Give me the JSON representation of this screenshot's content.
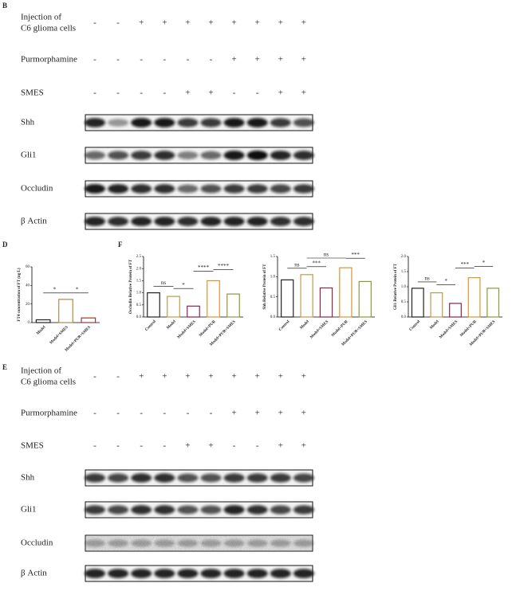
{
  "letters": [
    "B",
    "D",
    "F",
    "E"
  ],
  "blot_panels": [
    {
      "treatments": [
        {
          "label": [
            "Injection of",
            "C6 glioma cells"
          ],
          "signs": [
            "-",
            "-",
            "+",
            "+",
            "+",
            "+",
            "+",
            "+",
            "+",
            "+"
          ]
        },
        {
          "label": [
            "Purmorphamine"
          ],
          "signs": [
            "-",
            "-",
            "-",
            "-",
            "-",
            "-",
            "+",
            "+",
            "+",
            "+"
          ]
        },
        {
          "label": [
            "SMES"
          ],
          "signs": [
            "-",
            "-",
            "-",
            "-",
            "+",
            "+",
            "-",
            "-",
            "+",
            "+"
          ]
        }
      ],
      "bands": [
        "Shh",
        "Gli1",
        "Occludin",
        "β Actin"
      ]
    },
    {
      "treatments": [
        {
          "label": [
            "Injection of",
            "C6 glioma cells"
          ],
          "signs": [
            "-",
            "-",
            "+",
            "+",
            "+",
            "+",
            "+",
            "+",
            "+",
            "+"
          ]
        },
        {
          "label": [
            "Purmorphamine"
          ],
          "signs": [
            "-",
            "-",
            "-",
            "-",
            "-",
            "-",
            "+",
            "+",
            "+",
            "+"
          ]
        },
        {
          "label": [
            "SMES"
          ],
          "signs": [
            "-",
            "-",
            "-",
            "-",
            "+",
            "+",
            "-",
            "-",
            "+",
            "+"
          ]
        }
      ],
      "bands": [
        "Shh",
        "Gli1",
        "Occludin",
        "β Actin"
      ]
    }
  ],
  "chart_data": [
    {
      "type": "bar",
      "ylabel": "FT4 concentration of FT (ng/L)",
      "categories": [
        "Model",
        "Model+SMES",
        "Model+PUR+SMES"
      ],
      "values": [
        3,
        25,
        5
      ],
      "colors": [
        "#222222",
        "#b08a4a",
        "#9c3a3a"
      ],
      "ylim": [
        0,
        60
      ],
      "yticks": [
        0,
        20,
        40,
        60
      ],
      "annotations": [
        "*",
        "*"
      ]
    },
    {
      "type": "bar",
      "ylabel": "Occludin Relative Protein of FT",
      "categories": [
        "Control",
        "Model",
        "Model+SMES",
        "Model+PUR",
        "Model+PUR+SMES"
      ],
      "values": [
        1.0,
        0.85,
        0.45,
        1.5,
        0.95
      ],
      "colors": [
        "#222222",
        "#c49a4a",
        "#8b2252",
        "#d9962a",
        "#8a9a3a"
      ],
      "ylim": [
        0,
        2.5
      ],
      "yticks": [
        {
          "value": 0,
          "label": "0.0"
        },
        {
          "value": 0.5,
          "label": "0.5"
        },
        {
          "value": 1,
          "label": "1.0"
        },
        {
          "value": 1.5,
          "label": "1.5"
        },
        {
          "value": 2,
          "label": "2.0"
        },
        {
          "value": 2.5,
          "label": "2.5"
        }
      ],
      "annotations": [
        "ns",
        "*",
        "****",
        "****"
      ]
    },
    {
      "type": "bar",
      "ylabel": "Shh Relative Protein of FT",
      "categories": [
        "Control",
        "Model",
        "Model+SMES",
        "Model+PUR",
        "Model+PUR+SMES"
      ],
      "values": [
        0.92,
        1.05,
        0.72,
        1.22,
        0.88
      ],
      "colors": [
        "#222222",
        "#c49a4a",
        "#8b2252",
        "#d9962a",
        "#8a9a3a"
      ],
      "ylim": [
        0,
        1.5
      ],
      "yticks": [
        {
          "value": 0,
          "label": "0.0"
        },
        {
          "value": 0.5,
          "label": "0.5"
        },
        {
          "value": 1,
          "label": "1.0"
        },
        {
          "value": 1.5,
          "label": "1.5"
        }
      ],
      "annotations": [
        "ns",
        "***",
        "ns",
        "***"
      ]
    },
    {
      "type": "bar",
      "ylabel": "Gli1 Relative Protein of FT",
      "categories": [
        "Control",
        "Model",
        "Model+SMES",
        "Model+PUR",
        "Model+PUR+SMES"
      ],
      "values": [
        0.95,
        0.8,
        0.45,
        1.3,
        0.95
      ],
      "colors": [
        "#222222",
        "#c49a4a",
        "#8b2252",
        "#d9962a",
        "#8a9a3a"
      ],
      "ylim": [
        0,
        2
      ],
      "yticks": [
        {
          "value": 0,
          "label": "0.0"
        },
        {
          "value": 0.5,
          "label": "0.5"
        },
        {
          "value": 1,
          "label": "1.0"
        },
        {
          "value": 1.5,
          "label": "1.5"
        },
        {
          "value": 2,
          "label": "2.0"
        }
      ],
      "annotations": [
        "ns",
        "*",
        "***",
        "*"
      ]
    }
  ]
}
